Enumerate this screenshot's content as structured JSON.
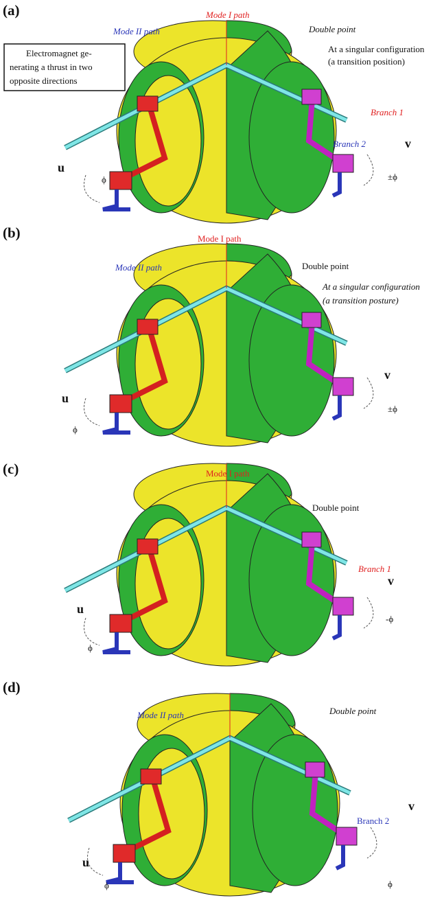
{
  "panels": [
    {
      "label": "(a)",
      "annotations": [
        "Mode I path",
        "Mode II path",
        "Double point",
        "At a singular configuration",
        "(a transition position)",
        "Electromagnet ge-",
        "nerating a thrust in two",
        "opposite directions",
        "Branch 1",
        "Branch 2",
        "u",
        "v",
        "ϕ",
        "±ϕ"
      ]
    },
    {
      "label": "(b)",
      "annotations": [
        "Mode I path",
        "Mode II path",
        "Double point",
        "At a singular configuration",
        "(a transition posture)",
        "u",
        "v",
        "ϕ",
        "±ϕ"
      ]
    },
    {
      "label": "(c)",
      "annotations": [
        "Mode I path",
        "Double point",
        "Branch 1",
        "u",
        "v",
        "ϕ",
        "-ϕ"
      ]
    },
    {
      "label": "(d)",
      "annotations": [
        "Mode II path",
        "Double point",
        "Branch 2",
        "u",
        "v",
        "ϕ",
        "ϕ"
      ]
    }
  ]
}
